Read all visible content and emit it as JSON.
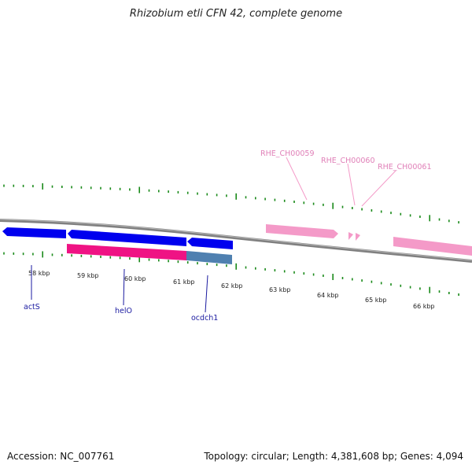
{
  "title": "Rhizobium etli CFN 42, complete genome",
  "accession": "Accession: NC_007761",
  "stats": "Topology: circular; Length: 4,381,608 bp; Genes: 4,094",
  "colors": {
    "backbone": "#808080",
    "forward_gene": "#0000ee",
    "reverse_gene": "#f49ac8",
    "highlight_red": "#ef1384",
    "highlight_blue": "#4f80b0",
    "tick": "#1a8a1a",
    "blue_label": "#1a1aa0",
    "pink_label": "#e080b8"
  },
  "scale_labels": [
    "58 kbp",
    "59 kbp",
    "60 kbp",
    "61 kbp",
    "62 kbp",
    "63 kbp",
    "64 kbp",
    "65 kbp",
    "66 kbp"
  ],
  "blue_gene_labels": [
    "actS",
    "helO",
    "ocdch1"
  ],
  "pink_gene_labels": [
    "RHE_CH00059",
    "RHE_CH00060",
    "RHE_CH00061"
  ]
}
